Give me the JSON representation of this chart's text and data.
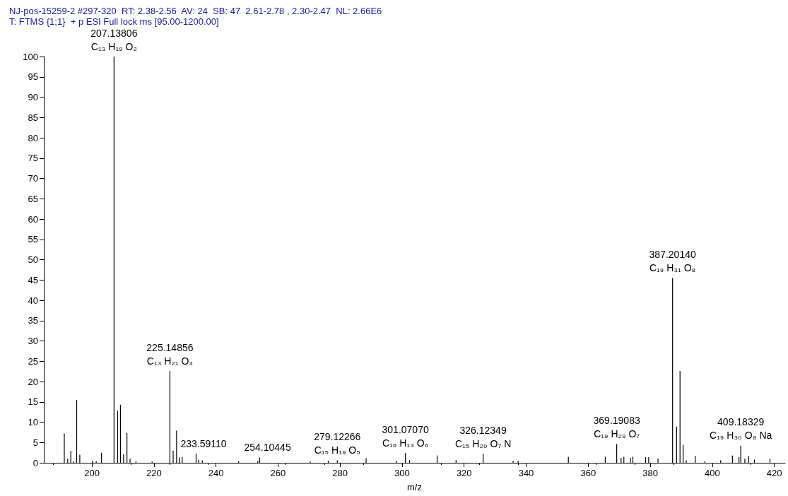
{
  "chart_data": {
    "type": "bar",
    "title": "NJ-pos-15259-2 #297-320  RT: 2.38-2.56  AV: 24  SB: 47  2.61-2.78 , 2.30-2.47  NL: 2.66E6",
    "subtitle": "T: FTMS {1;1}  + p ESI Full lock ms [95.00-1200.00]",
    "xlabel": "m/z",
    "color": "#000000",
    "grid": false,
    "x": [
      191.1,
      192.2,
      193.2,
      194.1,
      195.1,
      196.1,
      200.2,
      201.4,
      203.1,
      207.13806,
      208.3,
      209.2,
      210.2,
      211.3,
      212.3,
      214.2,
      219.4,
      225.14856,
      226.2,
      227.3,
      228.2,
      229.1,
      233.5911,
      234.4,
      235.6,
      247.3,
      253.5,
      254.10445,
      270.4,
      276.2,
      279.12266,
      288.4,
      298.2,
      301.0707,
      302.4,
      311.3,
      317.4,
      326.12349,
      335.8,
      337.4,
      353.6,
      365.5,
      369.19083,
      370.6,
      371.5,
      373.6,
      374.4,
      378.5,
      379.5,
      382.5,
      387.2014,
      388.5,
      389.6,
      390.6,
      391.6,
      394.5,
      397.6,
      402.7,
      406.5,
      408.6,
      409.18329,
      410.5,
      411.7,
      413.6,
      418.6
    ],
    "values": [
      7.2,
      1.0,
      2.9,
      0.4,
      15.5,
      2.0,
      0.5,
      0.4,
      2.5,
      100,
      12.8,
      14.3,
      2.1,
      7.3,
      1.0,
      0.4,
      0.3,
      22.6,
      3.0,
      7.9,
      1.3,
      1.5,
      2.2,
      0.8,
      0.6,
      0.4,
      0.5,
      1.3,
      0.3,
      0.5,
      0.6,
      1.1,
      0.5,
      2.4,
      0.7,
      1.8,
      0.7,
      2.2,
      0.5,
      0.5,
      1.5,
      1.5,
      4.6,
      1.2,
      1.5,
      1.2,
      1.5,
      1.4,
      1.4,
      1.0,
      45.5,
      8.9,
      22.6,
      4.4,
      0.6,
      1.7,
      0.4,
      0.6,
      1.8,
      1.4,
      4.2,
      1.0,
      1.7,
      0.8,
      1.0
    ],
    "xlim": [
      184.5,
      423.5
    ],
    "xticks": [
      200,
      220,
      240,
      260,
      280,
      300,
      320,
      340,
      360,
      380,
      400,
      420
    ],
    "ylim": [
      0,
      100
    ],
    "yticks": [
      0,
      5,
      10,
      15,
      20,
      25,
      30,
      35,
      40,
      45,
      50,
      55,
      60,
      65,
      70,
      75,
      80,
      85,
      90,
      95,
      100
    ],
    "annotations": [
      {
        "text": "207.13806\nC₁₃ H₁₉ O₂",
        "x": 207.13806,
        "y": 100
      },
      {
        "text": "225.14856\nC₁₃ H₂₁ O₃",
        "x": 225.14856,
        "y": 22.6
      },
      {
        "text": "233.59110",
        "x": 233.5911,
        "y": 2.2
      },
      {
        "text": "254.10445",
        "x": 254.10445,
        "y": 1.3
      },
      {
        "text": "279.12266\nC₁₅ H₁₉ O₅",
        "x": 279.12266,
        "y": 0.6
      },
      {
        "text": "301.07070\nC₁₆ H₁₃ O₆",
        "x": 301.0707,
        "y": 2.4
      },
      {
        "text": "326.12349\nC₁₅ H₂₀ O₇ N",
        "x": 326.12349,
        "y": 2.2
      },
      {
        "text": "369.19083\nC₁₉ H₂₉ O₇",
        "x": 369.19083,
        "y": 4.6
      },
      {
        "text": "387.20140\nC₁₉ H₃₁ O₈",
        "x": 387.2014,
        "y": 45.5
      },
      {
        "text": "409.18329\nC₁₉ H₃₀ O₈ Na",
        "x": 409.18329,
        "y": 4.2
      }
    ]
  }
}
